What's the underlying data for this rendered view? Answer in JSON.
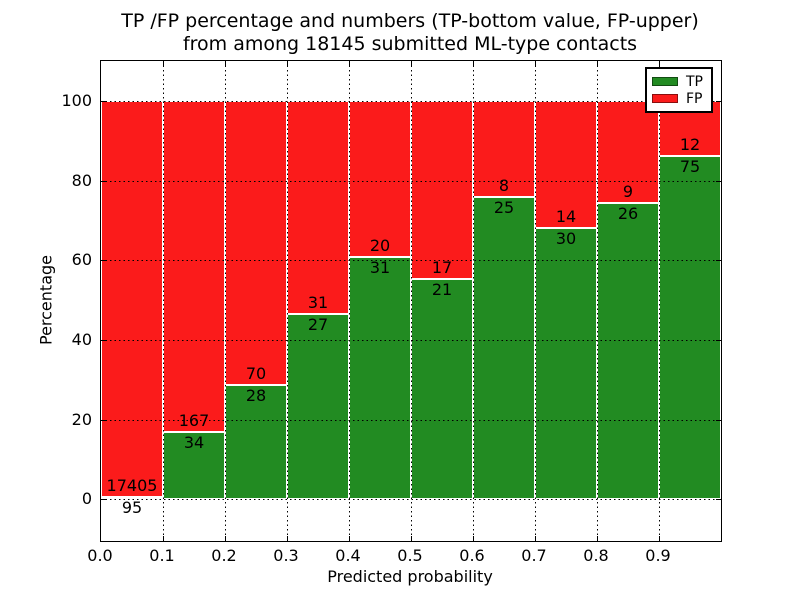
{
  "title": {
    "line1": "TP /FP percentage and numbers (TP-bottom value, FP-upper)",
    "line2": "from among 18145 submitted ML-type contacts"
  },
  "chart_data": {
    "type": "bar",
    "stacked": true,
    "normalized_to_percent": true,
    "title": "TP /FP percentage and numbers (TP-bottom value, FP-upper) from among 18145 submitted ML-type contacts",
    "xlabel": "Predicted probability",
    "ylabel": "Percentage",
    "total_contacts": 18145,
    "bins": [
      "0.0-0.1",
      "0.1-0.2",
      "0.2-0.3",
      "0.3-0.4",
      "0.4-0.5",
      "0.5-0.6",
      "0.6-0.7",
      "0.7-0.8",
      "0.8-0.9",
      "0.9-1.0"
    ],
    "series": [
      {
        "name": "TP",
        "color": "#228b22",
        "values": [
          95,
          34,
          28,
          27,
          31,
          21,
          25,
          30,
          26,
          75
        ]
      },
      {
        "name": "FP",
        "color": "#fb1b1b",
        "values": [
          17405,
          167,
          70,
          31,
          20,
          17,
          8,
          14,
          9,
          12
        ]
      }
    ],
    "tp_percent_of_bin": [
      0.54,
      16.92,
      28.57,
      46.55,
      60.78,
      55.26,
      75.76,
      68.18,
      74.29,
      86.21
    ],
    "xticks": [
      "0.0",
      "0.1",
      "0.2",
      "0.3",
      "0.4",
      "0.5",
      "0.6",
      "0.7",
      "0.8",
      "0.9"
    ],
    "yticks": [
      0,
      20,
      40,
      60,
      80,
      100
    ],
    "xlim": [
      0.0,
      1.0
    ],
    "ylim": [
      -10.5,
      110
    ],
    "grid": true,
    "grid_style": "dotted",
    "legend": {
      "position": "upper-right",
      "entries": [
        {
          "label": "TP",
          "color": "#228b22"
        },
        {
          "label": "FP",
          "color": "#fb1b1b"
        }
      ]
    }
  }
}
